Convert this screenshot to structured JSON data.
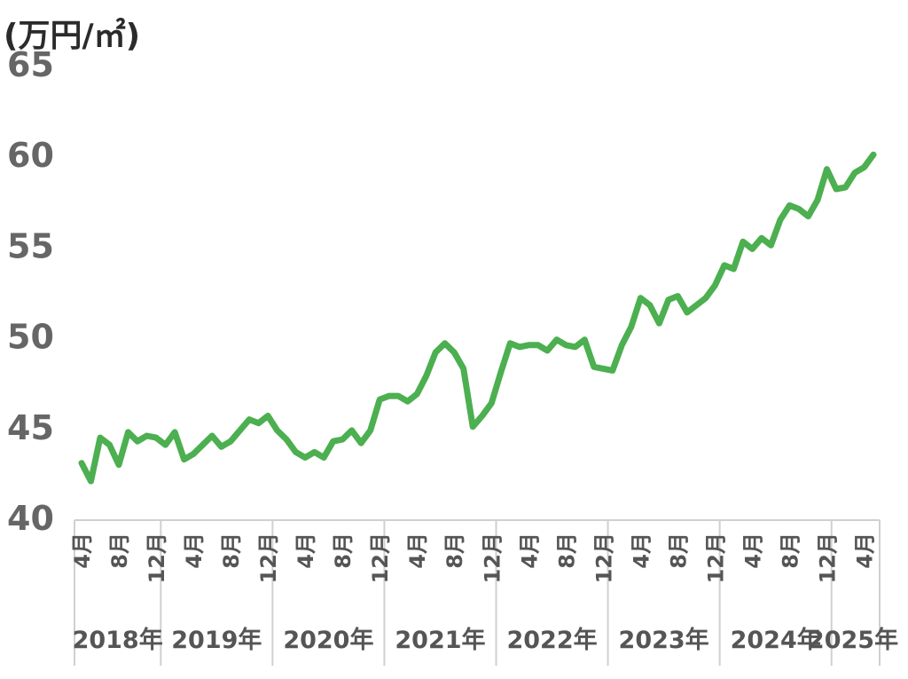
{
  "chart_data": {
    "type": "line",
    "ylabel": "(万円/㎡)",
    "ylim": [
      40,
      65
    ],
    "yticks": [
      "40",
      "45",
      "50",
      "55",
      "60",
      "65"
    ],
    "grid": false,
    "legend": "none",
    "color": "#4caf50",
    "month_labels": [
      "4月",
      "8月",
      "12月",
      "4月",
      "8月",
      "12月",
      "4月",
      "8月",
      "12月",
      "4月",
      "8月",
      "12月",
      "4月",
      "8月",
      "12月",
      "4月",
      "8月",
      "12月",
      "4月",
      "8月",
      "12月",
      "4月"
    ],
    "years": [
      "2018年",
      "2019年",
      "2020年",
      "2021年",
      "2022年",
      "2023年",
      "2024年",
      "2025年"
    ],
    "series": [
      {
        "values": [
          43.0,
          42.0,
          44.4,
          44.0,
          42.9,
          44.7,
          44.2,
          44.5,
          44.4,
          44.0,
          44.7,
          43.2,
          43.5,
          44.0,
          44.5,
          43.9,
          44.2,
          44.8,
          45.4,
          45.2,
          45.6,
          44.8,
          44.3,
          43.6,
          43.3,
          43.6,
          43.3,
          44.2,
          44.3,
          44.8,
          44.1,
          44.8,
          46.5,
          46.7,
          46.7,
          46.4,
          46.8,
          47.8,
          49.1,
          49.6,
          49.1,
          48.2,
          45.0,
          45.6,
          46.3,
          48.0,
          49.6,
          49.4,
          49.5,
          49.5,
          49.2,
          49.8,
          49.5,
          49.4,
          49.8,
          48.3,
          48.2,
          48.1,
          49.5,
          50.5,
          52.1,
          51.7,
          50.7,
          52.0,
          52.2,
          51.3,
          51.7,
          52.1,
          52.8,
          53.9,
          53.7,
          55.2,
          54.8,
          55.4,
          55.0,
          56.4,
          57.2,
          57.0,
          56.6,
          57.5,
          59.2,
          58.1,
          58.2,
          59.0,
          59.3,
          60.0
        ]
      }
    ]
  }
}
